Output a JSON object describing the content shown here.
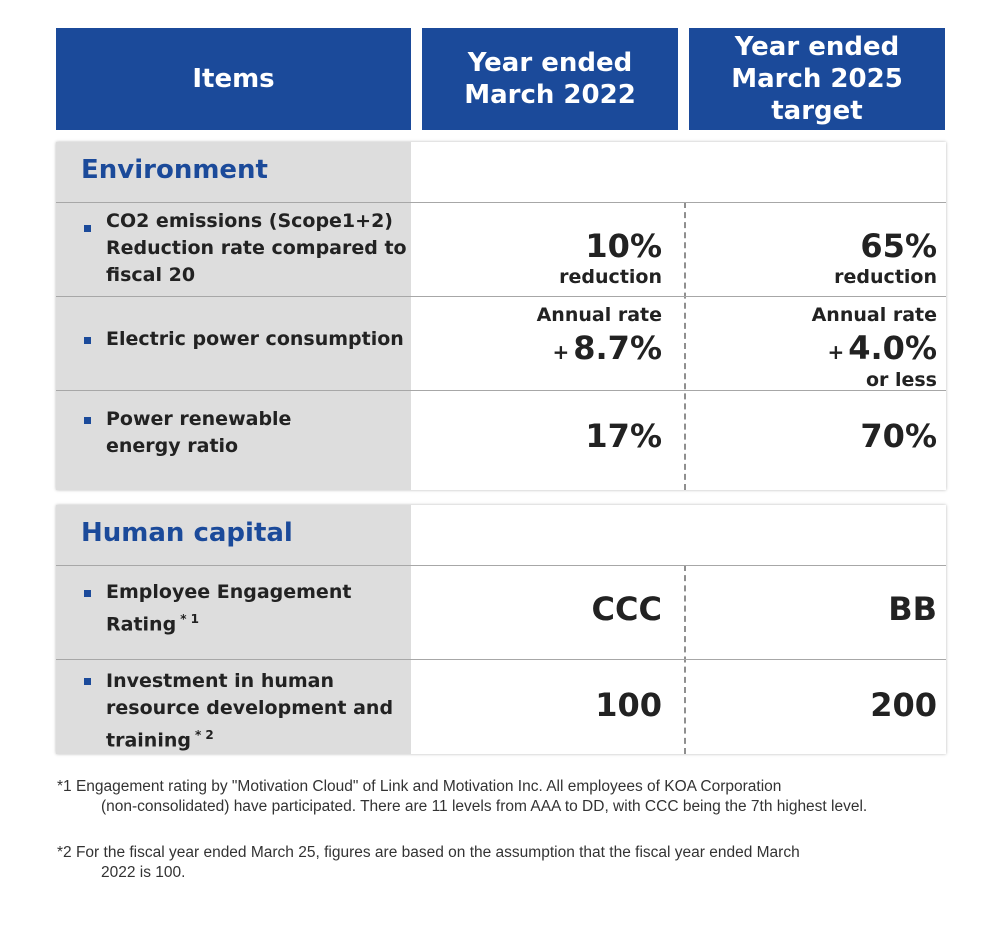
{
  "header": {
    "items": "Items",
    "col2": "Year ended\nMarch 2022",
    "col3": "Year ended\nMarch 2025\ntarget"
  },
  "environment": {
    "title": "Environment",
    "rows": [
      {
        "label": "CO2 emissions (Scope1+2)\nReduction rate compared to\nfiscal 20",
        "v2_main": "10%",
        "v2_sub": "reduction",
        "v3_main": "65%",
        "v3_sub": "reduction"
      },
      {
        "label": "Electric power consumption",
        "v2_pre": "Annual rate",
        "v2_sign": "+",
        "v2_main": "8.7%",
        "v3_pre": "Annual rate",
        "v3_sign": "+",
        "v3_main": "4.0%",
        "v3_sub": "or less"
      },
      {
        "label": "Power renewable\nenergy ratio",
        "v2_main": "17%",
        "v3_main": "70%"
      }
    ]
  },
  "human_capital": {
    "title": "Human capital",
    "rows": [
      {
        "label": "Employee Engagement\nRating",
        "sup": "* 1",
        "v2_main": "CCC",
        "v3_main": "BB"
      },
      {
        "label": "Investment in human\nresource development and\ntraining",
        "sup": "* 2",
        "v2_main": "100",
        "v3_main": "200"
      }
    ]
  },
  "notes": [
    {
      "first": "*1 Engagement rating by \"Motivation Cloud\" of Link and Motivation Inc. All employees of KOA Corporation",
      "rest": "(non-consolidated) have participated. There are 11 levels from AAA to DD, with CCC being the 7th highest level."
    },
    {
      "first": "*2 For the fiscal year ended March 25, figures are based on the assumption that the fiscal year ended March",
      "rest": "2022 is 100."
    }
  ],
  "colors": {
    "header_blue": "#1b4a9a",
    "left_column_gray": "#dddddd"
  }
}
